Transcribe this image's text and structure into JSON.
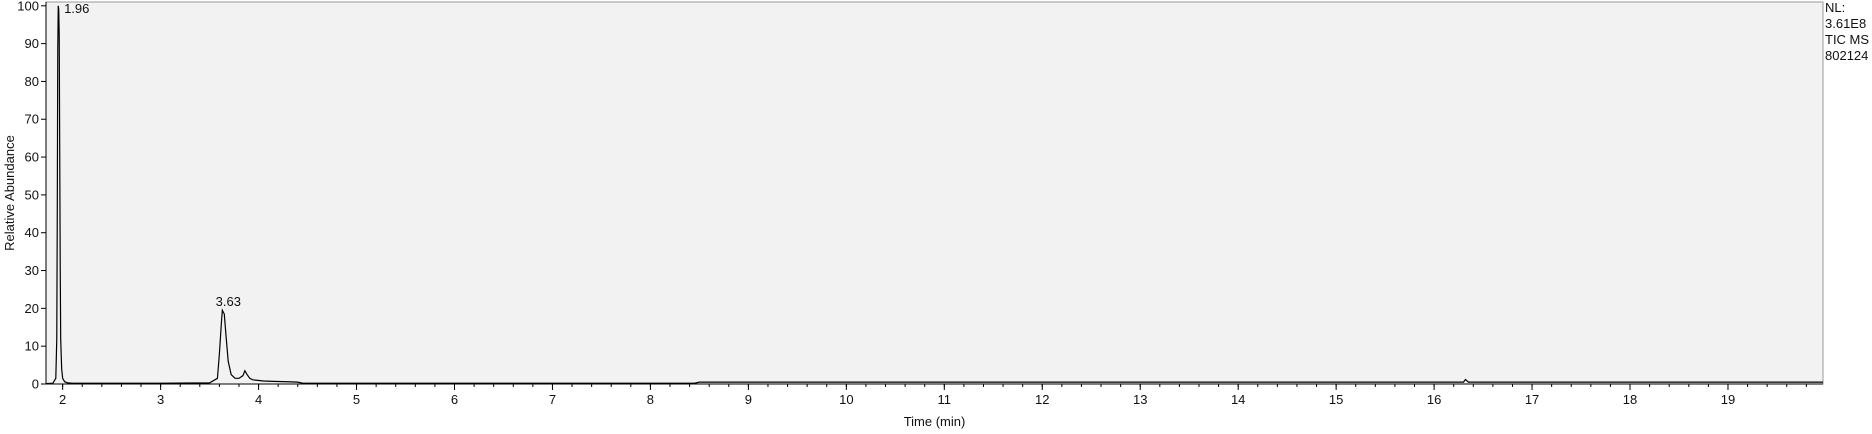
{
  "chart_data": {
    "type": "line",
    "xlabel": "Time (min)",
    "ylabel": "Relative Abundance",
    "xlim": [
      1.83,
      19.97
    ],
    "ylim": [
      0,
      101
    ],
    "x_ticks": [
      2,
      3,
      4,
      5,
      6,
      7,
      8,
      9,
      10,
      11,
      12,
      13,
      14,
      15,
      16,
      17,
      18,
      19
    ],
    "y_ticks": [
      0,
      10,
      20,
      30,
      40,
      50,
      60,
      70,
      80,
      90,
      100
    ],
    "grid": false,
    "plot_background": "#f2f2f2",
    "line_color": "#000000",
    "info_lines": [
      "NL:",
      "3.61E8",
      "TIC  MS",
      "802124"
    ],
    "peak_labels": [
      {
        "x": 1.96,
        "y": 100,
        "label": "1.96"
      },
      {
        "x": 3.63,
        "y": 19.5,
        "label": "3.63"
      }
    ],
    "series": [
      {
        "x": [
          1.83,
          1.9,
          1.93,
          1.94,
          1.945,
          1.95,
          1.955,
          1.96,
          1.965,
          1.97,
          1.975,
          1.98,
          1.99,
          2.0,
          2.02,
          2.05,
          2.1,
          2.5,
          3.0,
          3.5,
          3.58,
          3.6,
          3.62,
          3.63,
          3.65,
          3.67,
          3.69,
          3.72,
          3.76,
          3.8,
          3.84,
          3.86,
          3.88,
          3.91,
          3.94,
          3.98,
          4.05,
          4.15,
          4.3,
          4.4,
          4.45,
          5.0,
          6.0,
          7.0,
          8.0,
          8.45,
          8.5,
          9.0,
          10.0,
          12.0,
          14.0,
          16.0,
          16.3,
          16.32,
          16.35,
          17.0,
          18.0,
          19.0,
          19.97
        ],
        "y": [
          0.1,
          0.2,
          1.5,
          12,
          45,
          88,
          100,
          99,
          92,
          62,
          32,
          12,
          4,
          1.5,
          0.6,
          0.3,
          0.2,
          0.2,
          0.2,
          0.3,
          1.5,
          8,
          16,
          19.5,
          18.5,
          12,
          6,
          2.5,
          1.5,
          1.5,
          2.2,
          3.5,
          2.6,
          1.5,
          1.1,
          1.0,
          0.8,
          0.7,
          0.6,
          0.5,
          0.2,
          0.2,
          0.2,
          0.2,
          0.2,
          0.2,
          0.5,
          0.5,
          0.5,
          0.5,
          0.5,
          0.5,
          0.5,
          1.2,
          0.5,
          0.5,
          0.5,
          0.5,
          0.5
        ]
      }
    ]
  }
}
